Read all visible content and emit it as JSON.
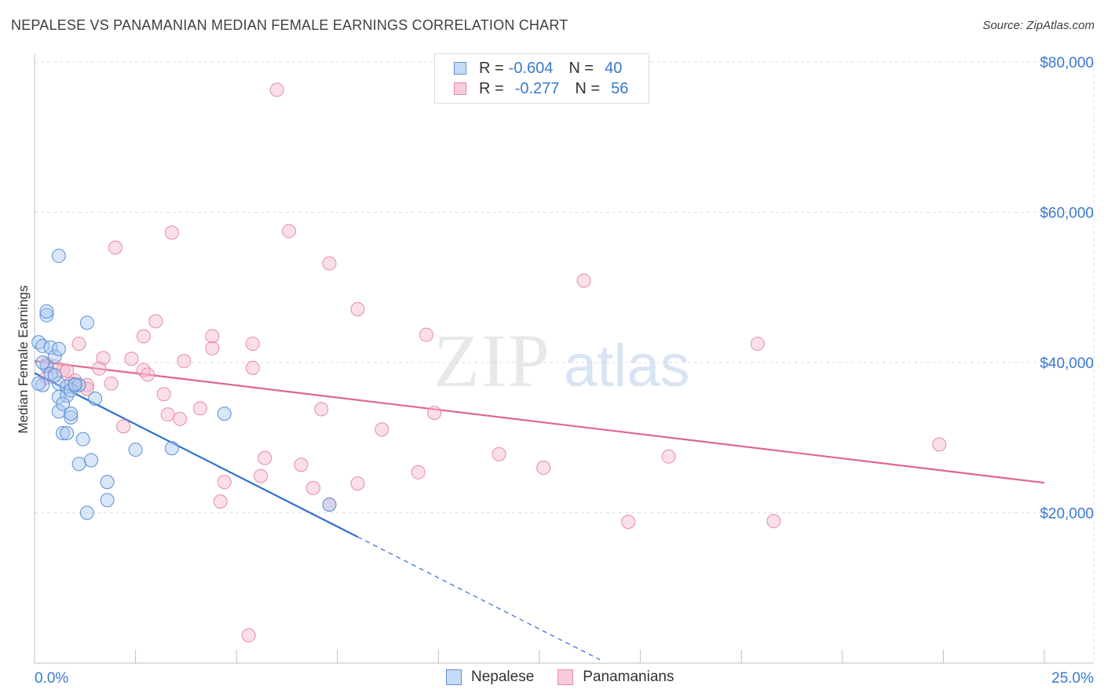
{
  "title": "NEPALESE VS PANAMANIAN MEDIAN FEMALE EARNINGS CORRELATION CHART",
  "source": "Source: ZipAtlas.com",
  "watermark": {
    "zip": "ZIP",
    "atlas": "atlas"
  },
  "legend_top": [
    {
      "r_label": "R =",
      "r_value": "-0.604",
      "n_label": "N =",
      "n_value": "40"
    },
    {
      "r_label": "R =",
      "r_value": "-0.277",
      "n_label": "N =",
      "n_value": "56"
    }
  ],
  "legend_bottom": [
    {
      "label": "Nepalese"
    },
    {
      "label": "Panamanians"
    }
  ],
  "colors": {
    "nepalese_fill": "#a8c8f0",
    "nepalese_stroke": "#5b8fd6",
    "nepalese_line": "#2e6fd0",
    "panamanian_fill": "#f6b8cb",
    "panamanian_stroke": "#e48aa8",
    "panamanian_line": "#e0668f",
    "axis_label": "#3b78d0",
    "grid": "#dddddd"
  },
  "chart_data": {
    "type": "scatter",
    "title": "NEPALESE VS PANAMANIAN MEDIAN FEMALE EARNINGS CORRELATION CHART",
    "xlabel": "",
    "ylabel": "Median Female Earnings",
    "xlim": [
      0,
      25
    ],
    "ylim": [
      0,
      83000
    ],
    "x_tick_labels": [
      "0.0%",
      "25.0%"
    ],
    "y_ticks": [
      20000,
      40000,
      60000,
      80000
    ],
    "y_tick_labels": [
      "$20,000",
      "$40,000",
      "$60,000",
      "$80,000"
    ],
    "series": [
      {
        "name": "Nepalese",
        "R": -0.604,
        "N": 40,
        "trend": {
          "x0": 0.0,
          "y0": 38600,
          "x1": 8.0,
          "y1": 16800,
          "dash_to_x": 14.0
        },
        "points": [
          [
            0.1,
            42700
          ],
          [
            0.2,
            42200
          ],
          [
            0.3,
            39500
          ],
          [
            0.4,
            42000
          ],
          [
            0.5,
            40800
          ],
          [
            0.6,
            41800
          ],
          [
            0.2,
            37000
          ],
          [
            0.4,
            38500
          ],
          [
            0.6,
            37200
          ],
          [
            0.6,
            35400
          ],
          [
            0.8,
            35600
          ],
          [
            0.8,
            36800
          ],
          [
            1.0,
            37000
          ],
          [
            1.1,
            37000
          ],
          [
            0.9,
            36300
          ],
          [
            1.5,
            35200
          ],
          [
            0.6,
            33500
          ],
          [
            0.9,
            32700
          ],
          [
            0.7,
            34500
          ],
          [
            0.9,
            33200
          ],
          [
            0.7,
            30600
          ],
          [
            0.8,
            30600
          ],
          [
            1.2,
            29800
          ],
          [
            1.4,
            27000
          ],
          [
            1.1,
            26500
          ],
          [
            2.5,
            28400
          ],
          [
            3.4,
            28600
          ],
          [
            1.8,
            24100
          ],
          [
            1.8,
            21700
          ],
          [
            1.3,
            20000
          ],
          [
            0.3,
            46300
          ],
          [
            0.3,
            46800
          ],
          [
            0.6,
            54200
          ],
          [
            1.3,
            45300
          ],
          [
            4.7,
            33200
          ],
          [
            0.1,
            37200
          ],
          [
            0.2,
            40000
          ],
          [
            0.5,
            38300
          ],
          [
            1.0,
            37100
          ],
          [
            7.3,
            21100
          ]
        ]
      },
      {
        "name": "Panamanians",
        "R": -0.277,
        "N": 56,
        "trend": {
          "x0": 0.0,
          "y0": 40200,
          "x1": 25.0,
          "y1": 24000
        },
        "points": [
          [
            6.0,
            76300
          ],
          [
            6.3,
            57500
          ],
          [
            3.4,
            57300
          ],
          [
            2.0,
            55300
          ],
          [
            7.3,
            53200
          ],
          [
            13.6,
            50900
          ],
          [
            8.0,
            47100
          ],
          [
            3.0,
            45500
          ],
          [
            2.7,
            43500
          ],
          [
            1.1,
            42500
          ],
          [
            4.4,
            43500
          ],
          [
            5.4,
            42500
          ],
          [
            9.7,
            43700
          ],
          [
            17.9,
            42500
          ],
          [
            1.7,
            40600
          ],
          [
            2.4,
            40500
          ],
          [
            3.7,
            40200
          ],
          [
            4.4,
            41900
          ],
          [
            1.6,
            39200
          ],
          [
            0.7,
            39000
          ],
          [
            0.5,
            39500
          ],
          [
            2.7,
            39000
          ],
          [
            2.8,
            38400
          ],
          [
            5.4,
            39300
          ],
          [
            0.3,
            38000
          ],
          [
            1.0,
            37600
          ],
          [
            1.9,
            37200
          ],
          [
            3.2,
            35800
          ],
          [
            1.3,
            37000
          ],
          [
            0.9,
            37200
          ],
          [
            4.1,
            33900
          ],
          [
            7.1,
            33800
          ],
          [
            3.3,
            33100
          ],
          [
            3.6,
            32500
          ],
          [
            9.9,
            33300
          ],
          [
            2.2,
            31500
          ],
          [
            8.6,
            31100
          ],
          [
            11.5,
            27800
          ],
          [
            15.7,
            27500
          ],
          [
            5.7,
            27300
          ],
          [
            6.6,
            26400
          ],
          [
            12.6,
            26000
          ],
          [
            9.5,
            25400
          ],
          [
            5.6,
            24900
          ],
          [
            4.7,
            24100
          ],
          [
            8.0,
            23900
          ],
          [
            6.9,
            23300
          ],
          [
            4.6,
            21500
          ],
          [
            14.7,
            18800
          ],
          [
            18.3,
            18900
          ],
          [
            22.4,
            29100
          ],
          [
            5.3,
            3700
          ],
          [
            0.3,
            39800
          ],
          [
            0.8,
            38900
          ],
          [
            1.3,
            36500
          ],
          [
            7.3,
            21100
          ]
        ]
      }
    ]
  }
}
